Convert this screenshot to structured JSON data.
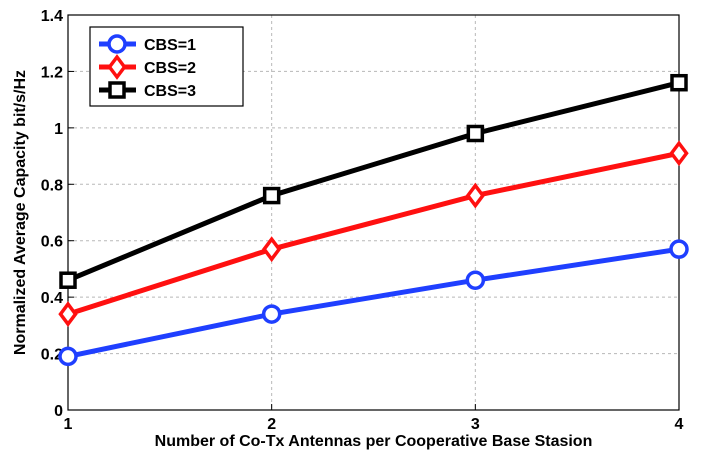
{
  "chart_data": {
    "type": "line",
    "x": [
      1,
      2,
      3,
      4
    ],
    "x_ticks": [
      "1",
      "2",
      "3",
      "4"
    ],
    "y_ticks": [
      "0",
      "0.2",
      "0.4",
      "0.6",
      "0.8",
      "1",
      "1.2",
      "1.4"
    ],
    "xlim": [
      1,
      4
    ],
    "ylim": [
      0,
      1.4
    ],
    "xlabel": "Number of Co-Tx Antennas per Cooperative Base Stasion",
    "ylabel": "Normalized Average Capacity bit/s/Hz",
    "grid": true,
    "legend_position": "top-left",
    "series": [
      {
        "name": "CBS=1",
        "values": [
          0.19,
          0.34,
          0.46,
          0.57
        ],
        "color": "#1f3fff",
        "marker": "circle"
      },
      {
        "name": "CBS=2",
        "values": [
          0.34,
          0.57,
          0.76,
          0.91
        ],
        "color": "#ff1010",
        "marker": "diamond"
      },
      {
        "name": "CBS=3",
        "values": [
          0.46,
          0.76,
          0.98,
          1.16
        ],
        "color": "#000000",
        "marker": "square"
      }
    ]
  }
}
